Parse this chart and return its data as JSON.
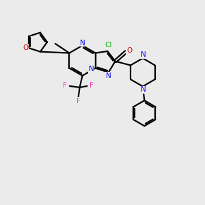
{
  "background_color": "#ebebeb",
  "bond_color": "#000000",
  "atom_colors": {
    "N": "#0000ee",
    "O": "#dd0000",
    "Cl": "#00aa00",
    "F": "#ee44bb",
    "C": "#000000"
  },
  "figsize": [
    3.0,
    3.0
  ],
  "dpi": 100,
  "xlim": [
    -2.5,
    3.5
  ],
  "ylim": [
    -3.2,
    2.5
  ]
}
